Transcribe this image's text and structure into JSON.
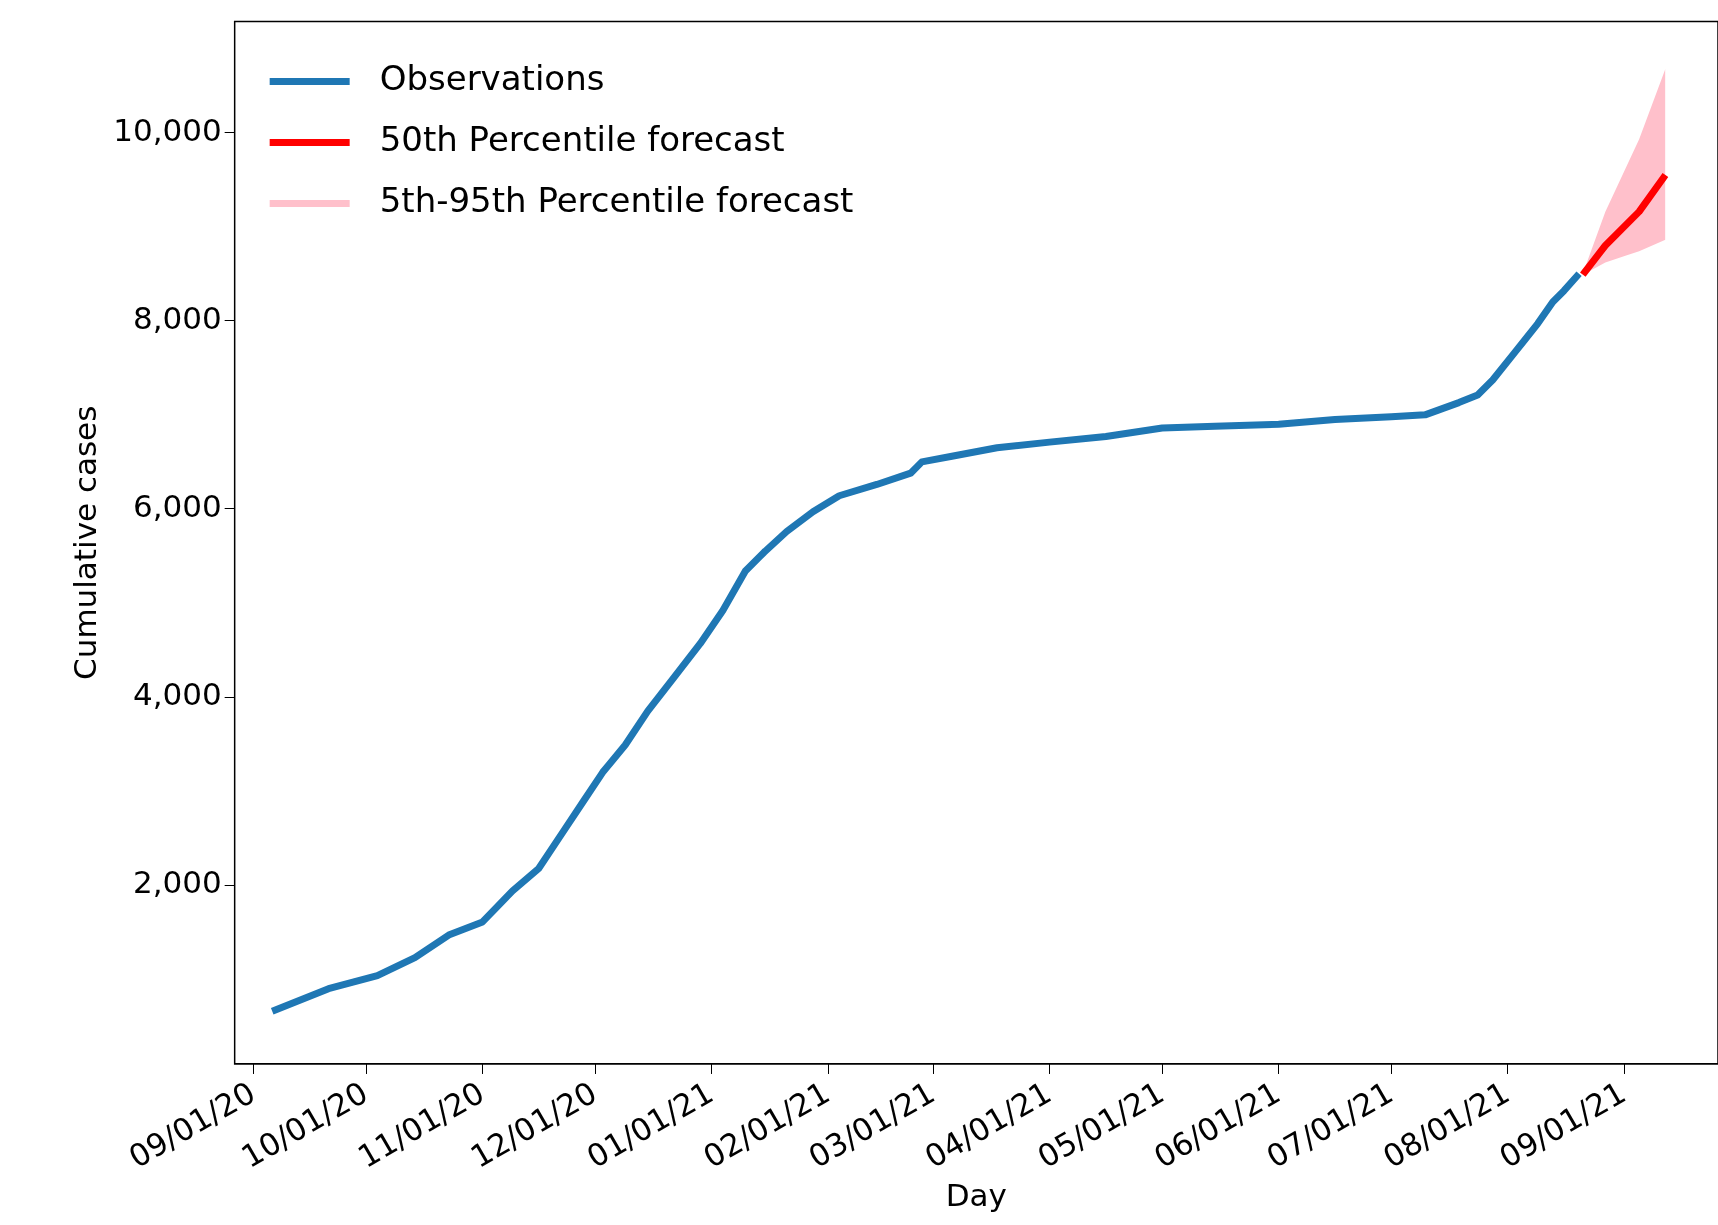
{
  "chart_data": {
    "type": "line",
    "xlabel": "Day",
    "ylabel": "Cumulative cases",
    "legend": "top left",
    "grid": false,
    "line_style": "solid",
    "marker": "none",
    "xlim": [
      "2020-08-27",
      "2021-09-26"
    ],
    "ylim": [
      100,
      11180
    ],
    "xticks": [
      {
        "value": "2020-09-01",
        "label": "09/01/20"
      },
      {
        "value": "2020-10-01",
        "label": "10/01/20"
      },
      {
        "value": "2020-11-01",
        "label": "11/01/20"
      },
      {
        "value": "2020-12-01",
        "label": "12/01/20"
      },
      {
        "value": "2021-01-01",
        "label": "01/01/21"
      },
      {
        "value": "2021-02-01",
        "label": "02/01/21"
      },
      {
        "value": "2021-03-01",
        "label": "03/01/21"
      },
      {
        "value": "2021-04-01",
        "label": "04/01/21"
      },
      {
        "value": "2021-05-01",
        "label": "05/01/21"
      },
      {
        "value": "2021-06-01",
        "label": "06/01/21"
      },
      {
        "value": "2021-07-01",
        "label": "07/01/21"
      },
      {
        "value": "2021-08-01",
        "label": "08/01/21"
      },
      {
        "value": "2021-09-01",
        "label": "09/01/21"
      }
    ],
    "yticks": [
      {
        "value": 2000,
        "label": "2,000"
      },
      {
        "value": 4000,
        "label": "4,000"
      },
      {
        "value": 6000,
        "label": "6,000"
      },
      {
        "value": 8000,
        "label": "8,000"
      },
      {
        "value": 10000,
        "label": "10,000"
      }
    ],
    "series": [
      {
        "name": "Observations",
        "color": "#1f77b4",
        "x": [
          "2020-09-06",
          "2020-09-21",
          "2020-10-04",
          "2020-10-14",
          "2020-10-23",
          "2020-11-01",
          "2020-11-09",
          "2020-11-16",
          "2020-11-22",
          "2020-11-28",
          "2020-12-03",
          "2020-12-09",
          "2020-12-15",
          "2020-12-22",
          "2020-12-29",
          "2021-01-04",
          "2021-01-10",
          "2021-01-15",
          "2021-01-21",
          "2021-01-28",
          "2021-02-04",
          "2021-02-14",
          "2021-02-23",
          "2021-02-26",
          "2021-03-06",
          "2021-03-18",
          "2021-04-01",
          "2021-04-16",
          "2021-05-01",
          "2021-05-15",
          "2021-06-01",
          "2021-06-16",
          "2021-07-01",
          "2021-07-10",
          "2021-07-19",
          "2021-07-24",
          "2021-07-28",
          "2021-08-03",
          "2021-08-09",
          "2021-08-13",
          "2021-08-16",
          "2021-08-20"
        ],
        "values": [
          660,
          900,
          1040,
          1230,
          1470,
          1610,
          1940,
          2180,
          2540,
          2900,
          3200,
          3490,
          3850,
          4210,
          4570,
          4920,
          5340,
          5540,
          5760,
          5970,
          6140,
          6260,
          6380,
          6500,
          6560,
          6650,
          6710,
          6770,
          6860,
          6880,
          6900,
          6950,
          6980,
          7000,
          7130,
          7210,
          7370,
          7670,
          7970,
          8200,
          8320,
          8500
        ]
      },
      {
        "name": "50th Percentile forecast",
        "color": "#ff0000",
        "x": [
          "2021-08-21",
          "2021-08-27",
          "2021-09-05",
          "2021-09-12"
        ],
        "values": [
          8490,
          8800,
          9160,
          9550
        ]
      },
      {
        "name": "5th-95th Percentile forecast",
        "type": "area",
        "color": "#ffc0cb",
        "x": [
          "2021-08-21",
          "2021-08-27",
          "2021-09-05",
          "2021-09-12"
        ],
        "values": [
          null,
          null,
          null,
          null
        ],
        "lower": [
          8490,
          8620,
          8740,
          8860
        ],
        "upper": [
          8500,
          9160,
          9930,
          10680
        ]
      }
    ]
  }
}
